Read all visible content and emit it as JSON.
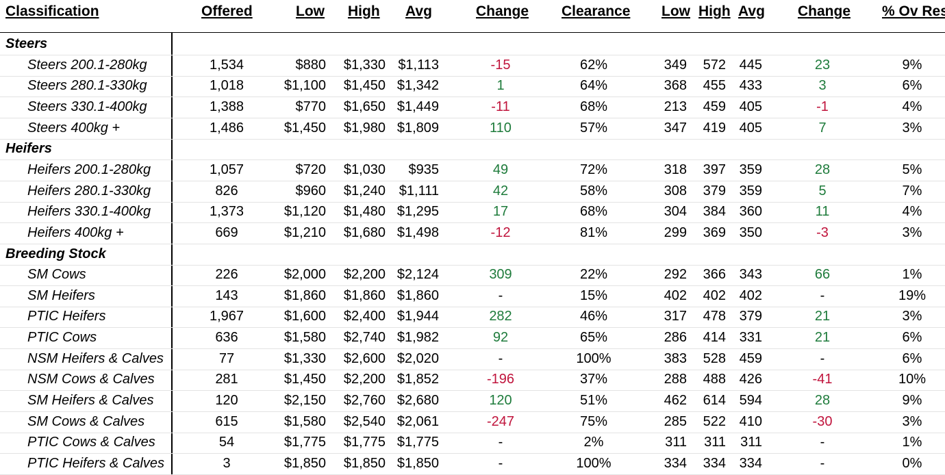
{
  "colors": {
    "positive": "#1e7b3b",
    "negative": "#c0143c"
  },
  "headers": {
    "classification": "Classification",
    "offered": "Offered",
    "low": "Low",
    "high": "High",
    "avg": "Avg",
    "change": "Change",
    "clearance": "Clearance",
    "low2": "Low",
    "high2": "High",
    "avg2": "Avg",
    "change2": "Change",
    "ovres": "% Ov Res"
  },
  "rows": [
    {
      "type": "section",
      "cls": "Steers"
    },
    {
      "cls": "Steers 200.1-280kg",
      "offered": "1,534",
      "low": "$880",
      "high": "$1,330",
      "avg": "$1,113",
      "change": "-15",
      "clearance": "62%",
      "low2": "349",
      "high2": "572",
      "avg2": "445",
      "change2": "23",
      "ovres": "9%"
    },
    {
      "cls": "Steers 280.1-330kg",
      "offered": "1,018",
      "low": "$1,100",
      "high": "$1,450",
      "avg": "$1,342",
      "change": "1",
      "clearance": "64%",
      "low2": "368",
      "high2": "455",
      "avg2": "433",
      "change2": "3",
      "ovres": "6%"
    },
    {
      "cls": "Steers 330.1-400kg",
      "offered": "1,388",
      "low": "$770",
      "high": "$1,650",
      "avg": "$1,449",
      "change": "-11",
      "clearance": "68%",
      "low2": "213",
      "high2": "459",
      "avg2": "405",
      "change2": "-1",
      "ovres": "4%"
    },
    {
      "cls": "Steers 400kg +",
      "offered": "1,486",
      "low": "$1,450",
      "high": "$1,980",
      "avg": "$1,809",
      "change": "110",
      "clearance": "57%",
      "low2": "347",
      "high2": "419",
      "avg2": "405",
      "change2": "7",
      "ovres": "3%"
    },
    {
      "type": "section",
      "cls": "Heifers"
    },
    {
      "cls": "Heifers 200.1-280kg",
      "offered": "1,057",
      "low": "$720",
      "high": "$1,030",
      "avg": "$935",
      "change": "49",
      "clearance": "72%",
      "low2": "318",
      "high2": "397",
      "avg2": "359",
      "change2": "28",
      "ovres": "5%"
    },
    {
      "cls": "Heifers 280.1-330kg",
      "offered": "826",
      "low": "$960",
      "high": "$1,240",
      "avg": "$1,111",
      "change": "42",
      "clearance": "58%",
      "low2": "308",
      "high2": "379",
      "avg2": "359",
      "change2": "5",
      "ovres": "7%"
    },
    {
      "cls": "Heifers 330.1-400kg",
      "offered": "1,373",
      "low": "$1,120",
      "high": "$1,480",
      "avg": "$1,295",
      "change": "17",
      "clearance": "68%",
      "low2": "304",
      "high2": "384",
      "avg2": "360",
      "change2": "11",
      "ovres": "4%"
    },
    {
      "cls": "Heifers 400kg +",
      "offered": "669",
      "low": "$1,210",
      "high": "$1,680",
      "avg": "$1,498",
      "change": "-12",
      "clearance": "81%",
      "low2": "299",
      "high2": "369",
      "avg2": "350",
      "change2": "-3",
      "ovres": "3%"
    },
    {
      "type": "section",
      "cls": "Breeding Stock"
    },
    {
      "cls": "SM Cows",
      "offered": "226",
      "low": "$2,000",
      "high": "$2,200",
      "avg": "$2,124",
      "change": "309",
      "clearance": "22%",
      "low2": "292",
      "high2": "366",
      "avg2": "343",
      "change2": "66",
      "ovres": "1%"
    },
    {
      "cls": "SM Heifers",
      "offered": "143",
      "low": "$1,860",
      "high": "$1,860",
      "avg": "$1,860",
      "change": "-",
      "clearance": "15%",
      "low2": "402",
      "high2": "402",
      "avg2": "402",
      "change2": "-",
      "ovres": "19%"
    },
    {
      "cls": "PTIC Heifers",
      "offered": "1,967",
      "low": "$1,600",
      "high": "$2,400",
      "avg": "$1,944",
      "change": "282",
      "clearance": "46%",
      "low2": "317",
      "high2": "478",
      "avg2": "379",
      "change2": "21",
      "ovres": "3%"
    },
    {
      "cls": "PTIC Cows",
      "offered": "636",
      "low": "$1,580",
      "high": "$2,740",
      "avg": "$1,982",
      "change": "92",
      "clearance": "65%",
      "low2": "286",
      "high2": "414",
      "avg2": "331",
      "change2": "21",
      "ovres": "6%"
    },
    {
      "cls": "NSM Heifers & Calves",
      "offered": "77",
      "low": "$1,330",
      "high": "$2,600",
      "avg": "$2,020",
      "change": "-",
      "clearance": "100%",
      "low2": "383",
      "high2": "528",
      "avg2": "459",
      "change2": "-",
      "ovres": "6%"
    },
    {
      "cls": "NSM Cows & Calves",
      "offered": "281",
      "low": "$1,450",
      "high": "$2,200",
      "avg": "$1,852",
      "change": "-196",
      "clearance": "37%",
      "low2": "288",
      "high2": "488",
      "avg2": "426",
      "change2": "-41",
      "ovres": "10%"
    },
    {
      "cls": "SM Heifers & Calves",
      "offered": "120",
      "low": "$2,150",
      "high": "$2,760",
      "avg": "$2,680",
      "change": "120",
      "clearance": "51%",
      "low2": "462",
      "high2": "614",
      "avg2": "594",
      "change2": "28",
      "ovres": "9%"
    },
    {
      "cls": "SM Cows & Calves",
      "offered": "615",
      "low": "$1,580",
      "high": "$2,540",
      "avg": "$2,061",
      "change": "-247",
      "clearance": "75%",
      "low2": "285",
      "high2": "522",
      "avg2": "410",
      "change2": "-30",
      "ovres": "3%"
    },
    {
      "cls": "PTIC Cows & Calves",
      "offered": "54",
      "low": "$1,775",
      "high": "$1,775",
      "avg": "$1,775",
      "change": "-",
      "clearance": "2%",
      "low2": "311",
      "high2": "311",
      "avg2": "311",
      "change2": "-",
      "ovres": "1%"
    },
    {
      "cls": "PTIC Heifers & Calves",
      "offered": "3",
      "low": "$1,850",
      "high": "$1,850",
      "avg": "$1,850",
      "change": "-",
      "clearance": "100%",
      "low2": "334",
      "high2": "334",
      "avg2": "334",
      "change2": "-",
      "ovres": "0%"
    }
  ]
}
